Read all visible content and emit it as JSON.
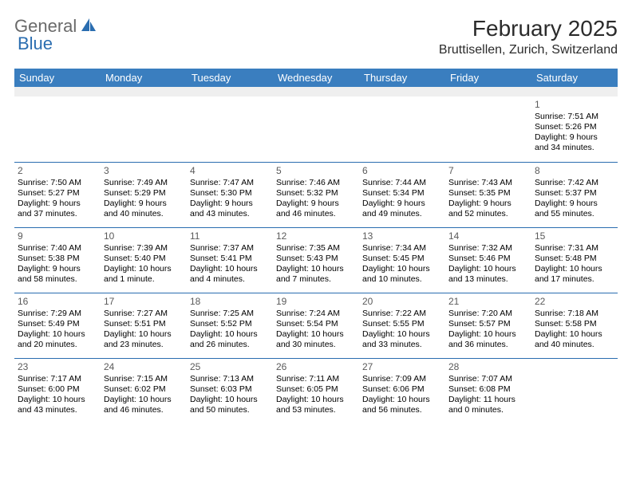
{
  "logo": {
    "text1": "General",
    "text2": "Blue"
  },
  "header": {
    "month_title": "February 2025",
    "location": "Bruttisellen, Zurich, Switzerland"
  },
  "colors": {
    "header_bg": "#3a7ebf",
    "header_text": "#ffffff",
    "border": "#2a6db0",
    "blank_row": "#efefef",
    "logo_gray": "#6a6a6a",
    "logo_blue": "#2a6db0",
    "daynum": "#5a5a5a",
    "text": "#000000"
  },
  "weekdays": [
    "Sunday",
    "Monday",
    "Tuesday",
    "Wednesday",
    "Thursday",
    "Friday",
    "Saturday"
  ],
  "weeks": [
    [
      null,
      null,
      null,
      null,
      null,
      null,
      {
        "n": "1",
        "sunrise": "Sunrise: 7:51 AM",
        "sunset": "Sunset: 5:26 PM",
        "day1": "Daylight: 9 hours",
        "day2": "and 34 minutes."
      }
    ],
    [
      {
        "n": "2",
        "sunrise": "Sunrise: 7:50 AM",
        "sunset": "Sunset: 5:27 PM",
        "day1": "Daylight: 9 hours",
        "day2": "and 37 minutes."
      },
      {
        "n": "3",
        "sunrise": "Sunrise: 7:49 AM",
        "sunset": "Sunset: 5:29 PM",
        "day1": "Daylight: 9 hours",
        "day2": "and 40 minutes."
      },
      {
        "n": "4",
        "sunrise": "Sunrise: 7:47 AM",
        "sunset": "Sunset: 5:30 PM",
        "day1": "Daylight: 9 hours",
        "day2": "and 43 minutes."
      },
      {
        "n": "5",
        "sunrise": "Sunrise: 7:46 AM",
        "sunset": "Sunset: 5:32 PM",
        "day1": "Daylight: 9 hours",
        "day2": "and 46 minutes."
      },
      {
        "n": "6",
        "sunrise": "Sunrise: 7:44 AM",
        "sunset": "Sunset: 5:34 PM",
        "day1": "Daylight: 9 hours",
        "day2": "and 49 minutes."
      },
      {
        "n": "7",
        "sunrise": "Sunrise: 7:43 AM",
        "sunset": "Sunset: 5:35 PM",
        "day1": "Daylight: 9 hours",
        "day2": "and 52 minutes."
      },
      {
        "n": "8",
        "sunrise": "Sunrise: 7:42 AM",
        "sunset": "Sunset: 5:37 PM",
        "day1": "Daylight: 9 hours",
        "day2": "and 55 minutes."
      }
    ],
    [
      {
        "n": "9",
        "sunrise": "Sunrise: 7:40 AM",
        "sunset": "Sunset: 5:38 PM",
        "day1": "Daylight: 9 hours",
        "day2": "and 58 minutes."
      },
      {
        "n": "10",
        "sunrise": "Sunrise: 7:39 AM",
        "sunset": "Sunset: 5:40 PM",
        "day1": "Daylight: 10 hours",
        "day2": "and 1 minute."
      },
      {
        "n": "11",
        "sunrise": "Sunrise: 7:37 AM",
        "sunset": "Sunset: 5:41 PM",
        "day1": "Daylight: 10 hours",
        "day2": "and 4 minutes."
      },
      {
        "n": "12",
        "sunrise": "Sunrise: 7:35 AM",
        "sunset": "Sunset: 5:43 PM",
        "day1": "Daylight: 10 hours",
        "day2": "and 7 minutes."
      },
      {
        "n": "13",
        "sunrise": "Sunrise: 7:34 AM",
        "sunset": "Sunset: 5:45 PM",
        "day1": "Daylight: 10 hours",
        "day2": "and 10 minutes."
      },
      {
        "n": "14",
        "sunrise": "Sunrise: 7:32 AM",
        "sunset": "Sunset: 5:46 PM",
        "day1": "Daylight: 10 hours",
        "day2": "and 13 minutes."
      },
      {
        "n": "15",
        "sunrise": "Sunrise: 7:31 AM",
        "sunset": "Sunset: 5:48 PM",
        "day1": "Daylight: 10 hours",
        "day2": "and 17 minutes."
      }
    ],
    [
      {
        "n": "16",
        "sunrise": "Sunrise: 7:29 AM",
        "sunset": "Sunset: 5:49 PM",
        "day1": "Daylight: 10 hours",
        "day2": "and 20 minutes."
      },
      {
        "n": "17",
        "sunrise": "Sunrise: 7:27 AM",
        "sunset": "Sunset: 5:51 PM",
        "day1": "Daylight: 10 hours",
        "day2": "and 23 minutes."
      },
      {
        "n": "18",
        "sunrise": "Sunrise: 7:25 AM",
        "sunset": "Sunset: 5:52 PM",
        "day1": "Daylight: 10 hours",
        "day2": "and 26 minutes."
      },
      {
        "n": "19",
        "sunrise": "Sunrise: 7:24 AM",
        "sunset": "Sunset: 5:54 PM",
        "day1": "Daylight: 10 hours",
        "day2": "and 30 minutes."
      },
      {
        "n": "20",
        "sunrise": "Sunrise: 7:22 AM",
        "sunset": "Sunset: 5:55 PM",
        "day1": "Daylight: 10 hours",
        "day2": "and 33 minutes."
      },
      {
        "n": "21",
        "sunrise": "Sunrise: 7:20 AM",
        "sunset": "Sunset: 5:57 PM",
        "day1": "Daylight: 10 hours",
        "day2": "and 36 minutes."
      },
      {
        "n": "22",
        "sunrise": "Sunrise: 7:18 AM",
        "sunset": "Sunset: 5:58 PM",
        "day1": "Daylight: 10 hours",
        "day2": "and 40 minutes."
      }
    ],
    [
      {
        "n": "23",
        "sunrise": "Sunrise: 7:17 AM",
        "sunset": "Sunset: 6:00 PM",
        "day1": "Daylight: 10 hours",
        "day2": "and 43 minutes."
      },
      {
        "n": "24",
        "sunrise": "Sunrise: 7:15 AM",
        "sunset": "Sunset: 6:02 PM",
        "day1": "Daylight: 10 hours",
        "day2": "and 46 minutes."
      },
      {
        "n": "25",
        "sunrise": "Sunrise: 7:13 AM",
        "sunset": "Sunset: 6:03 PM",
        "day1": "Daylight: 10 hours",
        "day2": "and 50 minutes."
      },
      {
        "n": "26",
        "sunrise": "Sunrise: 7:11 AM",
        "sunset": "Sunset: 6:05 PM",
        "day1": "Daylight: 10 hours",
        "day2": "and 53 minutes."
      },
      {
        "n": "27",
        "sunrise": "Sunrise: 7:09 AM",
        "sunset": "Sunset: 6:06 PM",
        "day1": "Daylight: 10 hours",
        "day2": "and 56 minutes."
      },
      {
        "n": "28",
        "sunrise": "Sunrise: 7:07 AM",
        "sunset": "Sunset: 6:08 PM",
        "day1": "Daylight: 11 hours",
        "day2": "and 0 minutes."
      },
      null
    ]
  ]
}
